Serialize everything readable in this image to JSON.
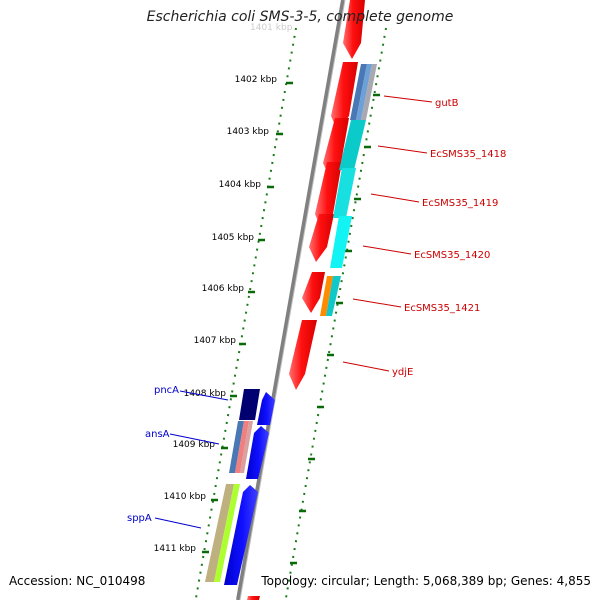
{
  "title": "Escherichia coli SMS-3-5, complete genome",
  "top_faded_label": "1401 kbp",
  "ticks": [
    "1402 kbp",
    "1403 kbp",
    "1404 kbp",
    "1405 kbp",
    "1406 kbp",
    "1407 kbp",
    "1408 kbp",
    "1409 kbp",
    "1410 kbp",
    "1411 kbp"
  ],
  "right_genes": [
    "gutB",
    "EcSMS35_1418",
    "EcSMS35_1419",
    "EcSMS35_1420",
    "EcSMS35_1421",
    "ydjE"
  ],
  "left_genes": [
    "pncA",
    "ansA",
    "sppA"
  ],
  "colors": {
    "forward_gene": "#ff1010",
    "reverse_gene": "#0a0aee",
    "right_label": "#cc0000",
    "left_label": "#0000cc",
    "tick": "#006600",
    "backbone": "#808080"
  },
  "footer": {
    "accession_label": "Accession:",
    "accession": "NC_010498",
    "topology_label": "Topology:",
    "topology": "circular",
    "length_label": "Length:",
    "length": "5,068,389 bp",
    "genes_label": "Genes:",
    "genes": "4,855"
  }
}
